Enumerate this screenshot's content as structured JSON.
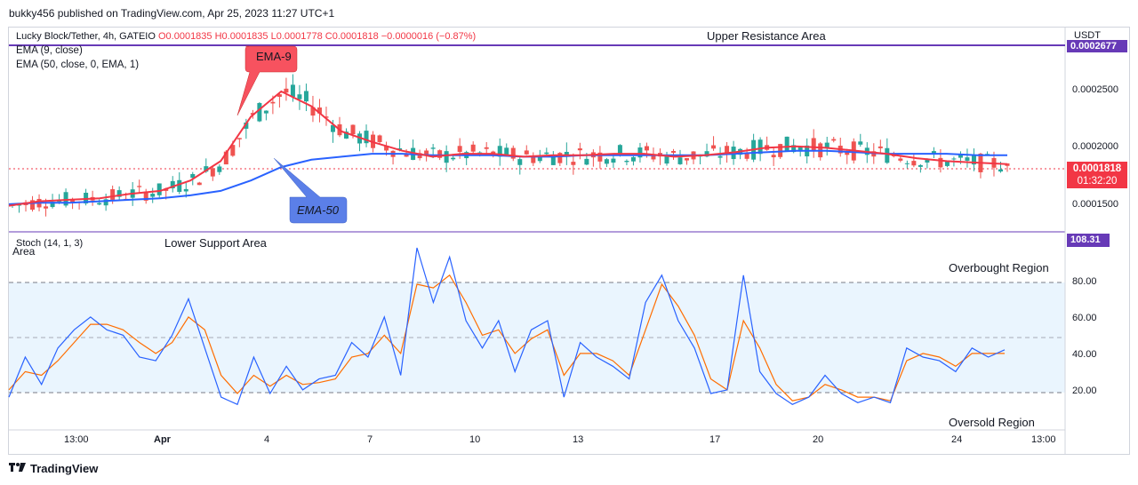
{
  "header": {
    "published_by": "bukky456 published on TradingView.com, Apr 25, 2023 11:27 UTC+1"
  },
  "symbol_bar": {
    "symbol": "Lucky Block/Tether, 4h, GATEIO",
    "ohlc": "O0.0001835 H0.0001835 L0.0001778 C0.0001818 −0.0000016 (−0.87%)"
  },
  "indicators": {
    "ema9": "EMA (9, close)",
    "ema50": "EMA (50, close, 0, EMA, 1)",
    "stoch": "Stoch (14, 1, 3)"
  },
  "annotations": {
    "upper_resistance": "Upper Resistance Area",
    "lower_support": "Lower Support Area",
    "area": "Area",
    "ema9_callout": "EMA-9",
    "ema50_callout": "EMA-50",
    "overbought": "Overbought Region",
    "oversold": "Oversold Region"
  },
  "price_axis": {
    "currency": "USDT",
    "ticks": [
      "0.0002500",
      "0.0002000",
      "0.0001500"
    ],
    "resistance_label": "0.0002677",
    "current_price": "0.0001818",
    "countdown": "01:32:20"
  },
  "stoch_axis": {
    "ticks": [
      "80.00",
      "60.00",
      "40.00",
      "20.00"
    ],
    "top_label": "108.31"
  },
  "time_axis": {
    "ticks": [
      "13:00",
      "Apr",
      "4",
      "7",
      "10",
      "13",
      "17",
      "20",
      "24",
      "13:00"
    ]
  },
  "footer": {
    "brand": "TradingView"
  },
  "colors": {
    "up": "#26a69a",
    "down": "#ef5350",
    "ema9": "#f23645",
    "ema50": "#2962ff",
    "stoch_k": "#2962ff",
    "stoch_d": "#ff6d00",
    "resistance_line": "#673ab7",
    "callout_ema9": "#f7525f",
    "callout_ema50": "#5b7fe8"
  },
  "chart_data": [
    {
      "type": "candlestick",
      "title": "Lucky Block/Tether, 4h, GATEIO",
      "ylabel": "USDT",
      "ylim": [
        0.000138,
        0.000275
      ],
      "x_ticks": [
        "13:00",
        "Apr",
        "4",
        "7",
        "10",
        "13",
        "17",
        "20",
        "24",
        "13:00"
      ],
      "y_ticks": [
        0.00015,
        0.0002,
        0.00025
      ],
      "levels": [
        {
          "name": "Upper Resistance Area",
          "value": 0.0002677
        }
      ],
      "ema9_samples": [
        0.000155,
        0.000158,
        0.000159,
        0.00016,
        0.000163,
        0.000165,
        0.000172,
        0.000185,
        0.000215,
        0.000232,
        0.000222,
        0.000205,
        0.000198,
        0.000192,
        0.000188,
        0.00019,
        0.00019,
        0.000188,
        0.000189,
        0.000189,
        0.00019,
        0.00019,
        0.000188,
        0.000189,
        0.000191,
        0.000194,
        0.000195,
        0.000194,
        0.000192,
        0.00019,
        0.000187,
        0.000185,
        0.000184,
        0.000183
      ],
      "ema50_samples": [
        0.000156,
        0.000157,
        0.000157,
        0.000158,
        0.000159,
        0.00016,
        0.000162,
        0.000165,
        0.000172,
        0.000181,
        0.000186,
        0.000188,
        0.00019,
        0.00019,
        0.000189,
        0.000189,
        0.000189,
        0.000188,
        0.000188,
        0.000189,
        0.000189,
        0.000189,
        0.000189,
        0.000189,
        0.00019,
        0.000191,
        0.000192,
        0.000192,
        0.000191,
        0.00019,
        0.00019,
        0.00019,
        0.000189,
        0.000189
      ],
      "last": {
        "open": 0.0001835,
        "high": 0.0001835,
        "low": 0.0001778,
        "close": 0.0001818
      }
    },
    {
      "type": "line",
      "title": "Stoch (14, 1, 3)",
      "ylim": [
        0,
        108.31
      ],
      "y_ticks": [
        20,
        40,
        60,
        80
      ],
      "bands": {
        "upper": 80,
        "middle": 50,
        "lower": 20
      },
      "series": [
        {
          "name": "%K",
          "values": [
            18,
            40,
            25,
            45,
            55,
            62,
            55,
            52,
            40,
            38,
            52,
            72,
            45,
            18,
            14,
            40,
            20,
            35,
            22,
            28,
            30,
            48,
            40,
            62,
            30,
            100,
            70,
            95,
            60,
            45,
            60,
            32,
            55,
            60,
            18,
            48,
            40,
            35,
            28,
            70,
            85,
            60,
            45,
            20,
            22,
            85,
            32,
            20,
            14,
            18,
            30,
            20,
            15,
            18,
            15,
            45,
            40,
            38,
            32,
            45,
            40,
            44
          ]
        },
        {
          "name": "%D",
          "values": [
            22,
            32,
            30,
            38,
            48,
            58,
            58,
            55,
            48,
            42,
            48,
            62,
            55,
            30,
            20,
            30,
            24,
            30,
            25,
            26,
            28,
            40,
            42,
            52,
            42,
            80,
            78,
            85,
            70,
            52,
            55,
            42,
            50,
            55,
            30,
            42,
            42,
            38,
            30,
            55,
            80,
            68,
            52,
            28,
            22,
            60,
            45,
            25,
            16,
            18,
            25,
            22,
            18,
            18,
            16,
            38,
            42,
            40,
            35,
            42,
            42,
            42
          ]
        }
      ],
      "annotations": [
        "Overbought Region",
        "Oversold Region"
      ]
    }
  ]
}
